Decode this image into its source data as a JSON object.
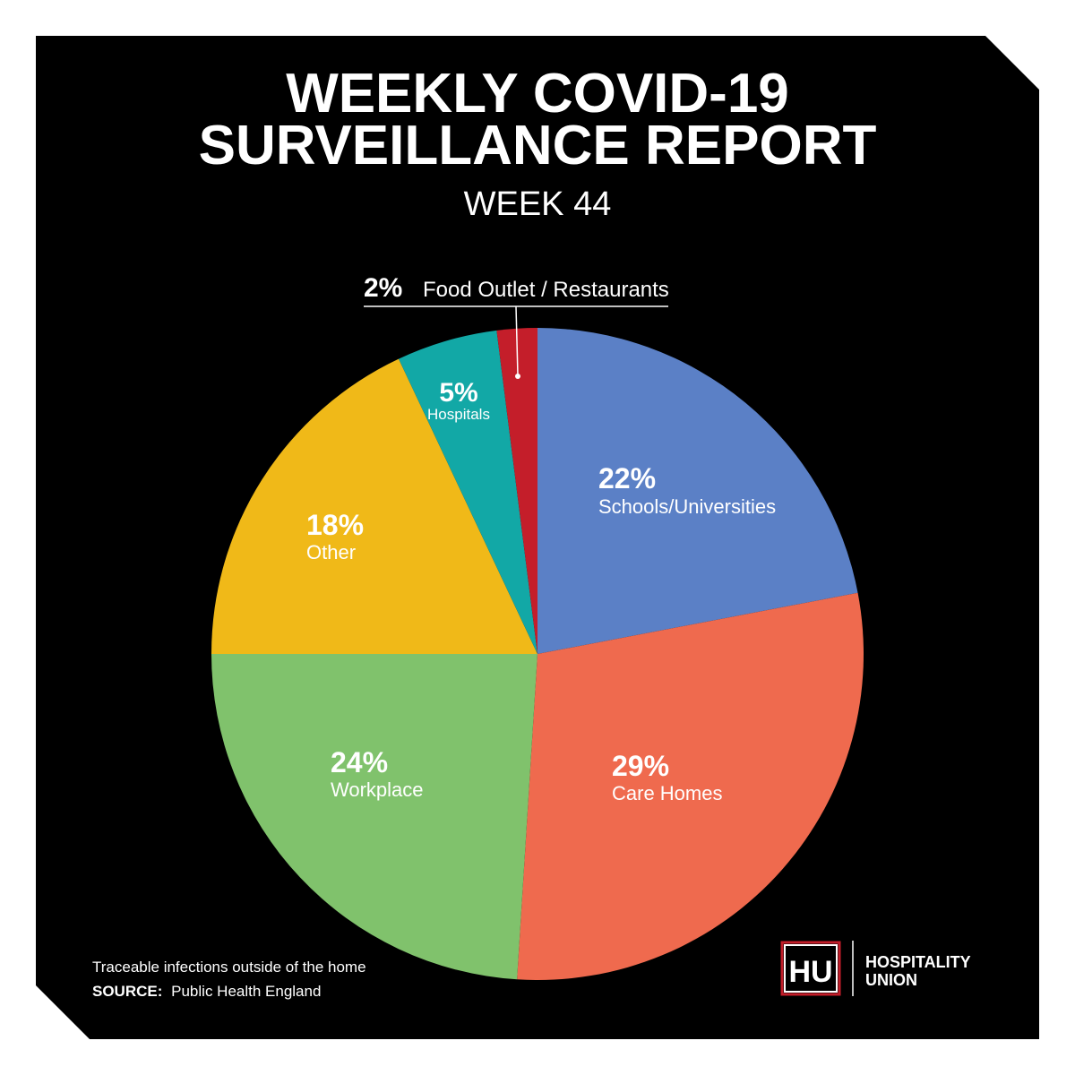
{
  "header": {
    "title_line1": "WEEKLY COVID-19",
    "title_line2": "SURVEILLANCE REPORT",
    "subtitle": "WEEK 44"
  },
  "footer": {
    "note": "Traceable infections outside of the home",
    "source_label": "SOURCE:",
    "source_value": "Public Health England"
  },
  "brand": {
    "logo_text": "HU",
    "name_line1": "HOSPITALITY",
    "name_line2": "UNION",
    "accent_color": "#c41e2a"
  },
  "colors": {
    "background": "#000000",
    "text": "#ffffff"
  },
  "chart_data": {
    "type": "pie",
    "start_angle_deg": 0,
    "direction": "clockwise",
    "slices": [
      {
        "label": "Schools/Universities",
        "value": 22,
        "display": "22%",
        "color": "#5b80c6"
      },
      {
        "label": "Care Homes",
        "value": 29,
        "display": "29%",
        "color": "#ef6a4e"
      },
      {
        "label": "Workplace",
        "value": 24,
        "display": "24%",
        "color": "#80c26c"
      },
      {
        "label": "Other",
        "value": 18,
        "display": "18%",
        "color": "#f0b918"
      },
      {
        "label": "Hospitals",
        "value": 5,
        "display": "5%",
        "color": "#12a8a6"
      },
      {
        "label": "Food Outlet / Restaurants",
        "value": 2,
        "display": "2%",
        "color": "#c41e2a"
      }
    ]
  }
}
